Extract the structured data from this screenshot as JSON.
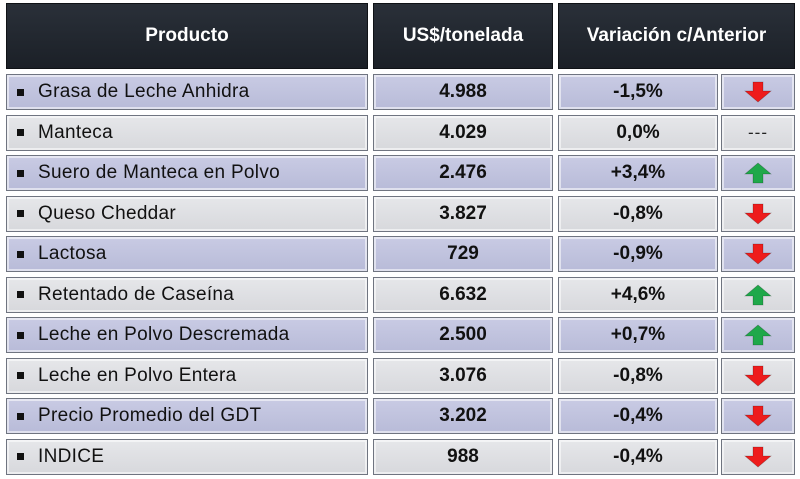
{
  "headers": {
    "product": "Producto",
    "price": "US$/tonelada",
    "variation": "Variación c/Anterior"
  },
  "rows": [
    {
      "product": "Grasa de Leche Anhidra",
      "price": "4.988",
      "change": "-1,5%",
      "trend": "down"
    },
    {
      "product": "Manteca",
      "price": "4.029",
      "change": "0,0%",
      "trend": "flat",
      "trend_text": "---"
    },
    {
      "product": "Suero de Manteca en Polvo",
      "price": "2.476",
      "change": "+3,4%",
      "trend": "up"
    },
    {
      "product": "Queso Cheddar",
      "price": "3.827",
      "change": "-0,8%",
      "trend": "down"
    },
    {
      "product": "Lactosa",
      "price": "729",
      "change": "-0,9%",
      "trend": "down"
    },
    {
      "product": "Retentado de Caseína",
      "price": "6.632",
      "change": "+4,6%",
      "trend": "up"
    },
    {
      "product": "Leche en Polvo Descremada",
      "price": "2.500",
      "change": "+0,7%",
      "trend": "up"
    },
    {
      "product": "Leche en Polvo Entera",
      "price": "3.076",
      "change": "-0,8%",
      "trend": "down"
    },
    {
      "product": "Precio Promedio del GDT",
      "price": "3.202",
      "change": "-0,4%",
      "trend": "down"
    },
    {
      "product": "INDICE",
      "price": "988",
      "change": "-0,4%",
      "trend": "down"
    }
  ],
  "colors": {
    "down_arrow": "#ee1c1c",
    "up_arrow": "#1fa84a",
    "header_bg": "#22272f"
  }
}
